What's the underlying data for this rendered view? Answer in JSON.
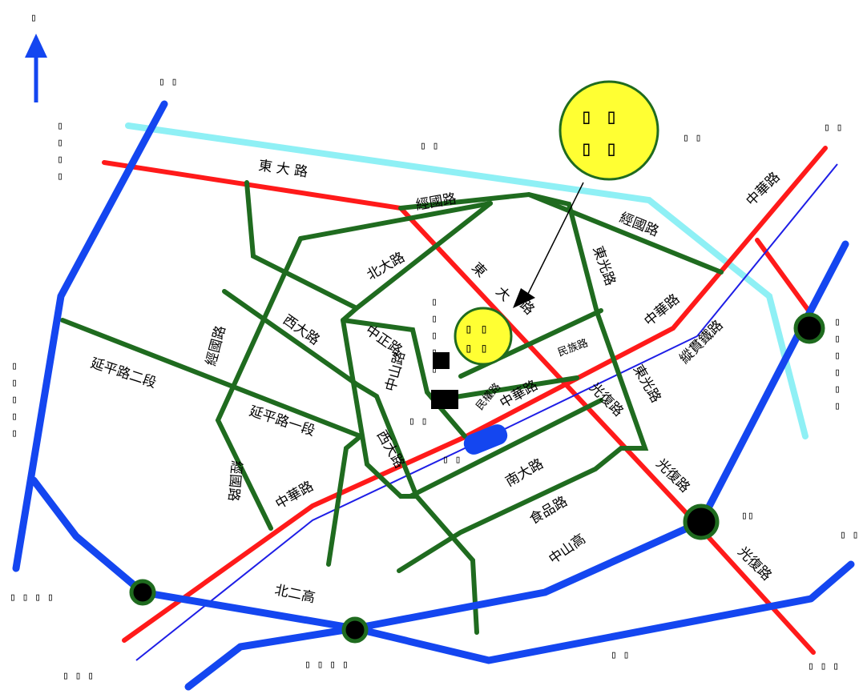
{
  "map": {
    "colors": {
      "background": "#ffffff",
      "local_road": "#1f6b1f",
      "provincial_road": "#ff1a1a",
      "freeway": "#1446f0",
      "expressway": "#8ff0f5",
      "railway": "#1e1ee6",
      "highlight": "#ffff33"
    },
    "compass_icon": "north-arrow-icon",
    "north_label": "▯",
    "road_labels": [
      "東 大 路",
      "經國路",
      "經國路",
      "東",
      "大",
      "路",
      "北大路",
      "東光路",
      "東光路",
      "中華路",
      "中華路",
      "中華路",
      "中華路",
      "縱貫鐵路",
      "西大路",
      "西大路",
      "經國路",
      "經國路",
      "中正路",
      "中山路",
      "民族路",
      "民權路",
      "光復路",
      "光復路",
      "光復路",
      "延平路二段",
      "延平路一段",
      "南大路",
      "食品路",
      "中山高",
      "北二高"
    ],
    "place_labels": [
      "▯ ▯",
      "▯ ▯",
      "▯ ▯",
      "▯ ▯",
      "▯ ▯",
      "▯ ▯",
      "▯ ▯",
      "▯ ▯",
      "▯ ▯ ▯",
      "▯ ▯ ▯",
      "▯ ▯ ▯ ▯",
      "▯ ▯ ▯ ▯"
    ],
    "vertical_labels": [
      "▯▯▯▯",
      "▯▯▯▯▯",
      "▯▯▯▯▯",
      "▯▯▯▯▯▯",
      "▯▯"
    ],
    "callout_large": [
      "▯ ▯",
      "▯ ▯"
    ],
    "callout_small": [
      "▯ ▯",
      "▯ ▯"
    ]
  }
}
